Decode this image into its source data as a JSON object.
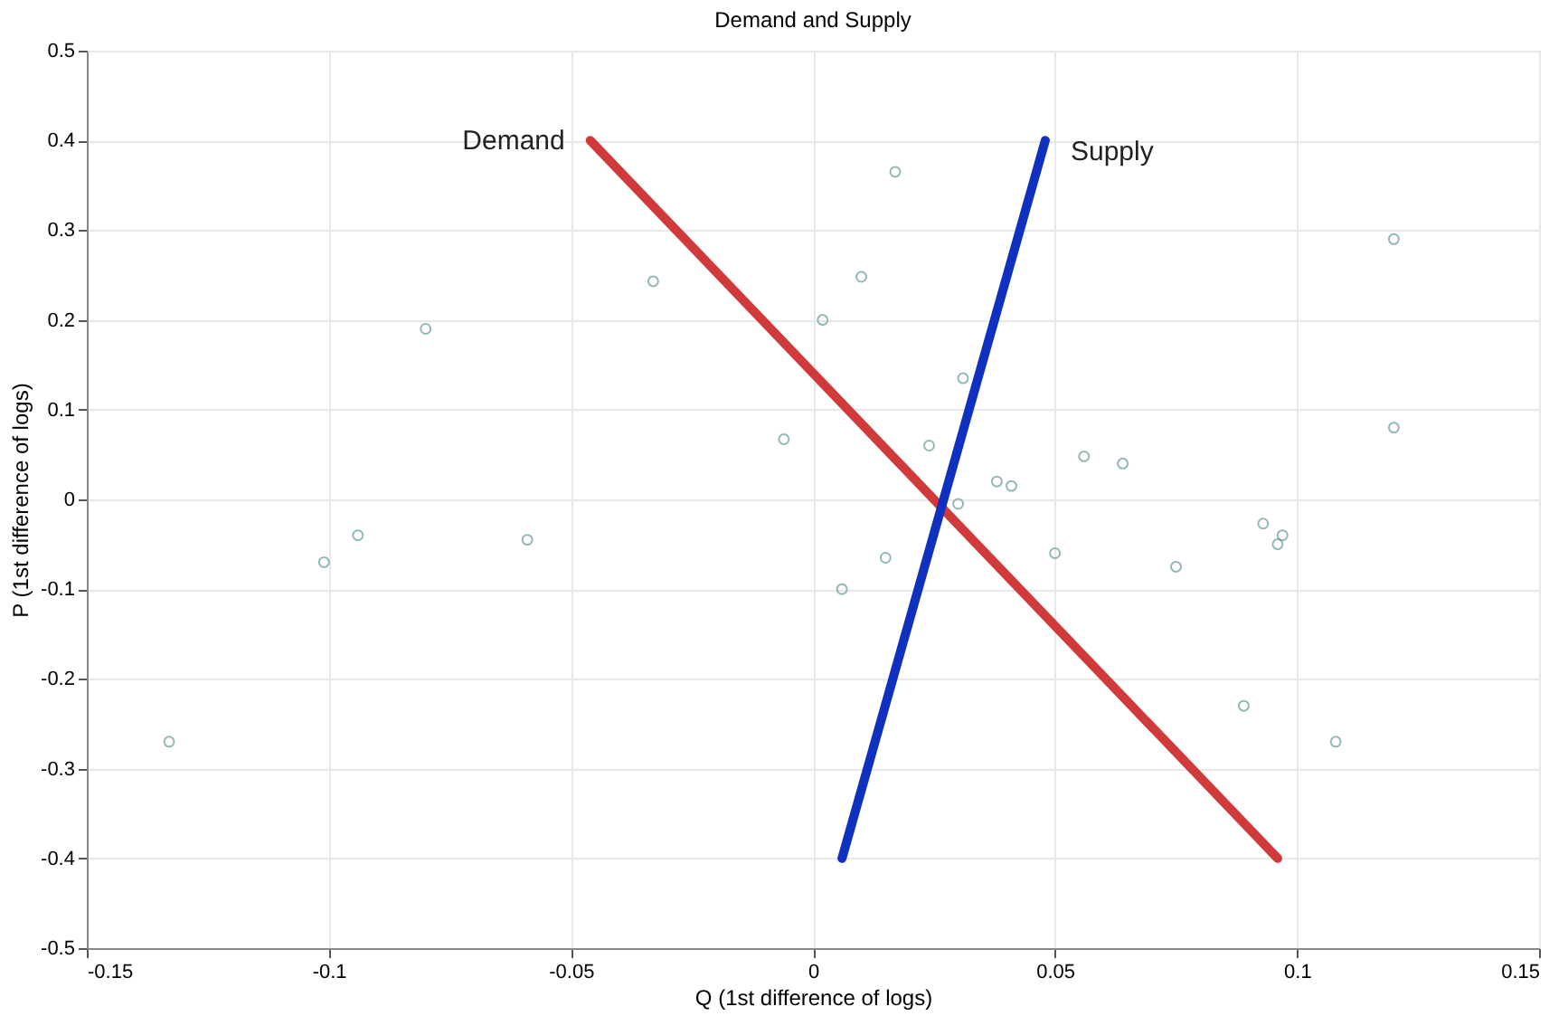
{
  "chart_data": {
    "type": "scatter",
    "title": "Demand and Supply",
    "xlabel": "Q (1st difference of logs)",
    "ylabel": "P (1st difference of logs)",
    "xlim": [
      -0.15,
      0.15
    ],
    "xticks": [
      -0.15,
      -0.1,
      -0.05,
      0,
      0.05,
      0.1,
      0.15
    ],
    "ylim": [
      -0.5,
      0.5
    ],
    "yticks": [
      -0.5,
      -0.4,
      -0.3,
      -0.2,
      -0.1,
      0,
      0.1,
      0.2,
      0.3,
      0.4,
      0.5
    ],
    "grid": true,
    "series": [
      {
        "type": "scatter",
        "marker": "circle",
        "color": "#6a9a9a",
        "x": [
          -0.133,
          -0.101,
          -0.094,
          -0.08,
          -0.059,
          -0.033,
          -0.006,
          0.002,
          0.006,
          0.01,
          0.015,
          0.017,
          0.024,
          0.03,
          0.031,
          0.038,
          0.041,
          0.05,
          0.056,
          0.064,
          0.075,
          0.089,
          0.093,
          0.096,
          0.097,
          0.108,
          0.12,
          0.12
        ],
        "values": [
          -0.27,
          -0.07,
          -0.04,
          0.19,
          -0.045,
          0.243,
          0.067,
          0.2,
          -0.1,
          0.248,
          -0.065,
          0.365,
          0.06,
          -0.005,
          0.135,
          0.02,
          0.015,
          -0.06,
          0.048,
          0.04,
          -0.075,
          -0.23,
          -0.027,
          -0.05,
          -0.04,
          -0.27,
          0.29,
          0.08
        ]
      },
      {
        "type": "line",
        "name": "Demand",
        "color": "#d03a3a",
        "x": [
          -0.046,
          0.096
        ],
        "values": [
          0.4,
          -0.4
        ]
      },
      {
        "type": "line",
        "name": "Supply",
        "color": "#1030c0",
        "x": [
          0.006,
          0.048
        ],
        "values": [
          -0.4,
          0.4
        ]
      }
    ]
  }
}
